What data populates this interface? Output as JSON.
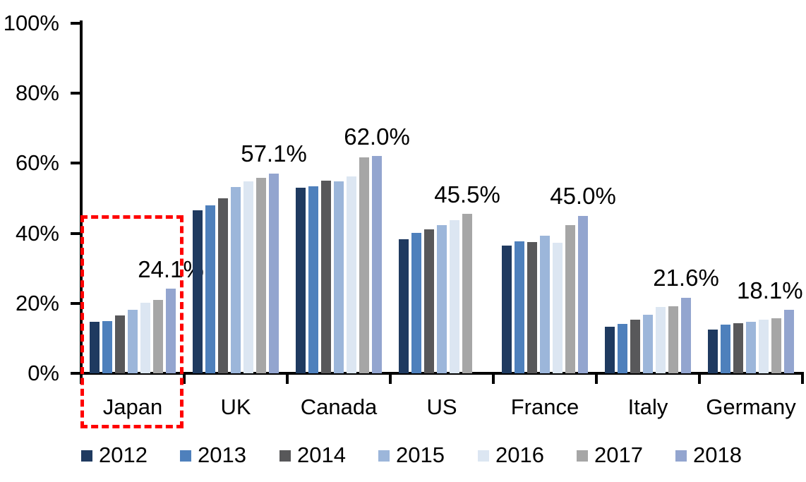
{
  "chart_data": {
    "type": "bar",
    "title": "",
    "xlabel": "",
    "ylabel": "",
    "ylim": [
      0,
      100
    ],
    "grid": false,
    "legend_position": "bottom",
    "axis_color": "#000000",
    "text_color": "#000000",
    "categories": [
      "Japan",
      "UK",
      "Canada",
      "US",
      "France",
      "Italy",
      "Germany"
    ],
    "yticks": [
      {
        "value": 0,
        "label": "0%"
      },
      {
        "value": 20,
        "label": "20%"
      },
      {
        "value": 40,
        "label": "40%"
      },
      {
        "value": 60,
        "label": "60%"
      },
      {
        "value": 80,
        "label": "80%"
      },
      {
        "value": 100,
        "label": "100%"
      }
    ],
    "series": [
      {
        "name": "2012",
        "color": "#1F3A60",
        "values": [
          14.8,
          46.5,
          53.1,
          38.3,
          36.5,
          13.3,
          12.5
        ]
      },
      {
        "name": "2013",
        "color": "#4E80BC",
        "values": [
          15.0,
          48.0,
          53.5,
          40.1,
          37.7,
          14.1,
          13.9
        ]
      },
      {
        "name": "2014",
        "color": "#58585A",
        "values": [
          16.6,
          49.9,
          55.0,
          41.2,
          37.6,
          15.4,
          14.3
        ]
      },
      {
        "name": "2015",
        "color": "#9CB6DA",
        "values": [
          18.2,
          53.2,
          54.8,
          42.3,
          39.3,
          16.7,
          14.7
        ]
      },
      {
        "name": "2016",
        "color": "#DCE6F2",
        "values": [
          20.1,
          54.8,
          56.3,
          43.7,
          37.3,
          18.9,
          15.3
        ]
      },
      {
        "name": "2017",
        "color": "#A6A6A6",
        "values": [
          21.0,
          55.8,
          61.7,
          45.5,
          42.3,
          19.1,
          15.7
        ]
      },
      {
        "name": "2018",
        "color": "#93A5CF",
        "values": [
          24.1,
          57.1,
          62.0,
          null,
          45.0,
          21.6,
          18.1
        ]
      }
    ],
    "data_labels": [
      "24.1%",
      "57.1%",
      "62.0%",
      "45.5%",
      "45.0%",
      "21.6%",
      "18.1%"
    ],
    "annotations": {
      "highlight_box": {
        "target": "Japan",
        "color": "#FF0000",
        "style": "dashed"
      }
    }
  }
}
